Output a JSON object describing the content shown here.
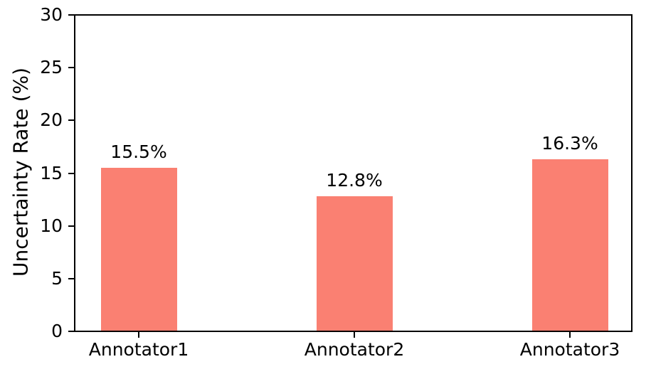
{
  "chart_data": {
    "type": "bar",
    "title": "",
    "categories": [
      "Annotator1",
      "Annotator2",
      "Annotator3"
    ],
    "values": [
      15.5,
      12.8,
      16.3
    ],
    "value_labels": [
      "15.5%",
      "12.8%",
      "16.3%"
    ],
    "xlabel": "",
    "ylabel": "Uncertainty Rate (%)",
    "ylim": [
      0,
      30
    ],
    "yticks": [
      0,
      5,
      10,
      15,
      20,
      25,
      30
    ],
    "ytick_labels": [
      "0",
      "5",
      "10",
      "15",
      "20",
      "25",
      "30"
    ],
    "bar_color": "#FA8072",
    "axis_color": "#000000",
    "grid": false,
    "legend": null
  }
}
